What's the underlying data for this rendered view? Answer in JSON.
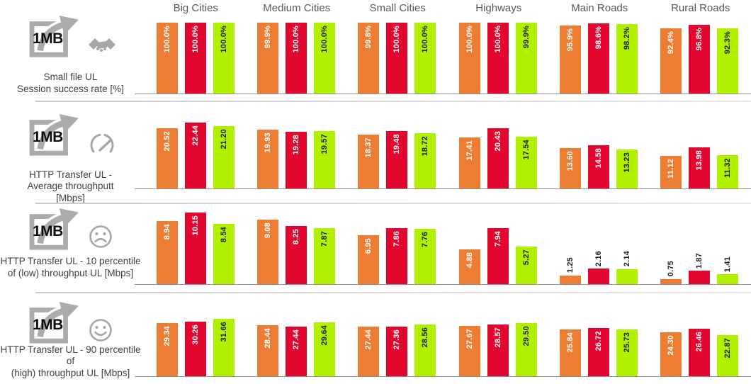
{
  "chart_data": {
    "type": "bar",
    "title": "",
    "legend": "none",
    "grid": false,
    "categories": [
      "Big Cities",
      "Medium Cities",
      "Small Cities",
      "Highways",
      "Main Roads",
      "Rural Roads"
    ],
    "series_colors": [
      {
        "color": "#EC7D32",
        "label_color": "#FFFFFF"
      },
      {
        "color": "#E2072F",
        "label_color": "#FFFFFF"
      },
      {
        "color": "#B1F100",
        "label_color": "#1F1F1F"
      }
    ],
    "axis_color": "#909090",
    "header_color": "#595959",
    "rows": [
      {
        "badge": "1MB",
        "icon": "handshake-icon",
        "label_lines": [
          "Small file UL",
          "Session success rate [%]"
        ],
        "ylabel": "Session success rate [%]",
        "ylim": [
          0,
          100
        ],
        "label_format": {
          "decimals": 1,
          "suffix": "%"
        },
        "series": [
          {
            "values": [
              100.0,
              99.9,
              99.8,
              100.0,
              95.9,
              92.4
            ]
          },
          {
            "values": [
              100.0,
              100.0,
              100.0,
              100.0,
              98.6,
              96.8
            ]
          },
          {
            "values": [
              100.0,
              100.0,
              100.0,
              99.9,
              98.2,
              92.3
            ]
          }
        ]
      },
      {
        "badge": "1MB",
        "icon": "speedometer-icon",
        "label_lines": [
          "HTTP Transfer UL -",
          "Average throughputt",
          "[Mbps]"
        ],
        "ylabel": "Average throughput [Mbps]",
        "ylim": [
          0,
          24
        ],
        "label_format": {
          "decimals": 2,
          "suffix": ""
        },
        "series": [
          {
            "values": [
              20.52,
              19.93,
              18.37,
              17.41,
              13.6,
              11.12
            ]
          },
          {
            "values": [
              22.44,
              19.28,
              19.48,
              20.43,
              14.58,
              13.98
            ]
          },
          {
            "values": [
              21.2,
              19.57,
              18.72,
              17.54,
              13.23,
              11.32
            ]
          }
        ]
      },
      {
        "badge": "1MB",
        "icon": "sad-face-icon",
        "label_lines": [
          "HTTP Transfer UL - 10 percentile",
          "of (low) throughput UL [Mbps]"
        ],
        "ylabel": "10 percentile throughput [Mbps]",
        "ylim": [
          0,
          11
        ],
        "label_format": {
          "decimals": 2,
          "suffix": ""
        },
        "series": [
          {
            "values": [
              8.94,
              9.08,
              6.95,
              4.88,
              1.25,
              0.75
            ]
          },
          {
            "values": [
              10.15,
              8.25,
              7.86,
              7.94,
              2.16,
              1.87
            ]
          },
          {
            "values": [
              8.54,
              7.87,
              7.76,
              5.27,
              2.14,
              1.41
            ]
          }
        ]
      },
      {
        "badge": "1MB",
        "icon": "happy-face-icon",
        "label_lines": [
          "HTTP Transfer UL - 90 percentile of",
          "(high) throughput UL [Mbps]"
        ],
        "ylabel": "90 percentile throughput [Mbps]",
        "ylim": [
          0,
          40
        ],
        "label_format": {
          "decimals": 2,
          "suffix": ""
        },
        "series": [
          {
            "values": [
              29.34,
              28.44,
              27.44,
              27.67,
              25.84,
              24.3
            ]
          },
          {
            "values": [
              30.26,
              27.44,
              27.36,
              28.57,
              26.72,
              26.46
            ]
          },
          {
            "values": [
              31.66,
              29.64,
              28.56,
              29.5,
              25.73,
              22.87
            ]
          }
        ]
      }
    ]
  }
}
